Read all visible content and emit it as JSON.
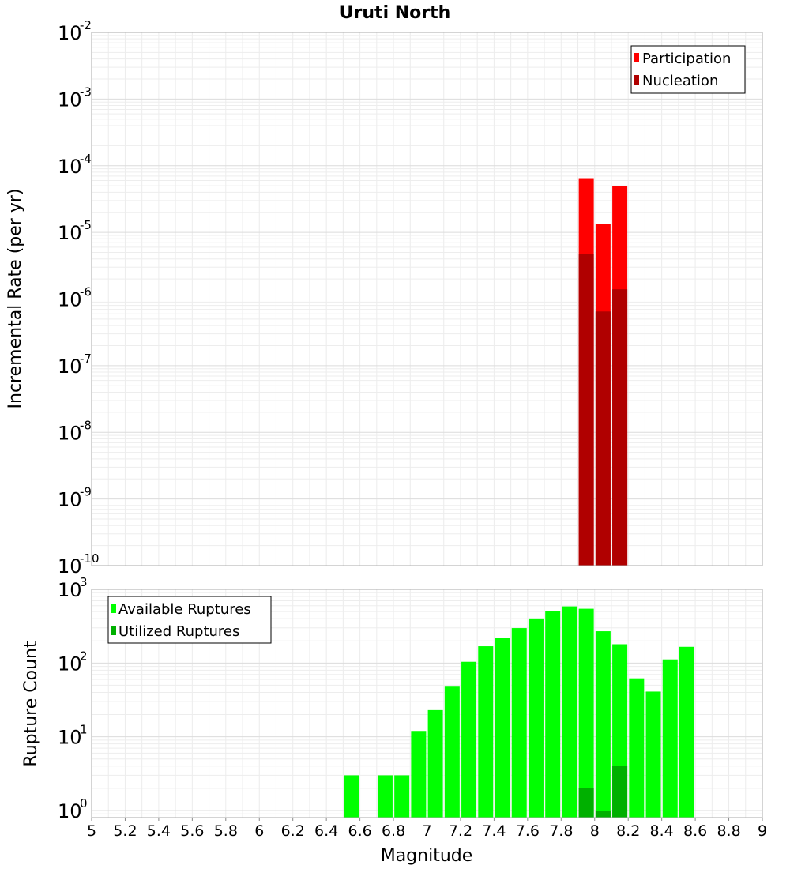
{
  "chart_data": [
    {
      "type": "bar",
      "title": "Uruti North",
      "xlabel": "",
      "ylabel": "Incremental Rate (per yr)",
      "y_scale": "log",
      "ylim": [
        1e-10,
        0.01
      ],
      "xlim": [
        5,
        9
      ],
      "grid": true,
      "legend_placement": "top-right",
      "series": [
        {
          "name": "Participation",
          "color": "#ff0000",
          "x": [
            7.95,
            8.05,
            8.15
          ],
          "values": [
            6.5e-05,
            1.35e-05,
            5e-05
          ]
        },
        {
          "name": "Nucleation",
          "color": "#b00000",
          "x": [
            7.95,
            8.05,
            8.15
          ],
          "values": [
            4.7e-06,
            6.5e-07,
            1.4e-06
          ]
        }
      ],
      "ytick_labels": [
        {
          "base": "10",
          "exp": "-2"
        },
        {
          "base": "10",
          "exp": "-3"
        },
        {
          "base": "10",
          "exp": "-4"
        },
        {
          "base": "10",
          "exp": "-5"
        },
        {
          "base": "10",
          "exp": "-6"
        },
        {
          "base": "10",
          "exp": "-7"
        },
        {
          "base": "10",
          "exp": "-8"
        },
        {
          "base": "10",
          "exp": "-9"
        },
        {
          "base": "10",
          "exp": "-10"
        }
      ]
    },
    {
      "type": "bar",
      "title": "",
      "xlabel": "Magnitude",
      "ylabel": "Rupture Count",
      "y_scale": "log",
      "ylim": [
        0.8,
        1000
      ],
      "xlim": [
        5,
        9
      ],
      "grid": true,
      "legend_placement": "top-left",
      "series": [
        {
          "name": "Available Ruptures",
          "color": "#00ff00",
          "x": [
            6.55,
            6.75,
            6.85,
            6.95,
            7.05,
            7.15,
            7.25,
            7.35,
            7.45,
            7.55,
            7.65,
            7.75,
            7.85,
            7.95,
            8.05,
            8.15,
            8.25,
            8.35,
            8.45,
            8.55
          ],
          "values": [
            3,
            3,
            3,
            12,
            23,
            49,
            104,
            169,
            219,
            298,
            403,
            503,
            587,
            545,
            270,
            180,
            62,
            41,
            112,
            166
          ]
        },
        {
          "name": "Utilized Ruptures",
          "color": "#00b000",
          "x": [
            7.95,
            8.05,
            8.15
          ],
          "values": [
            2,
            1,
            4
          ]
        }
      ],
      "ytick_labels": [
        {
          "base": "10",
          "exp": "3"
        },
        {
          "base": "10",
          "exp": "2"
        },
        {
          "base": "10",
          "exp": "1"
        },
        {
          "base": "10",
          "exp": "0"
        }
      ],
      "xtick_labels": [
        "5",
        "5.2",
        "5.4",
        "5.6",
        "5.8",
        "6",
        "6.2",
        "6.4",
        "6.6",
        "6.8",
        "7",
        "7.2",
        "7.4",
        "7.6",
        "7.8",
        "8",
        "8.2",
        "8.4",
        "8.6",
        "8.8",
        "9"
      ]
    }
  ]
}
